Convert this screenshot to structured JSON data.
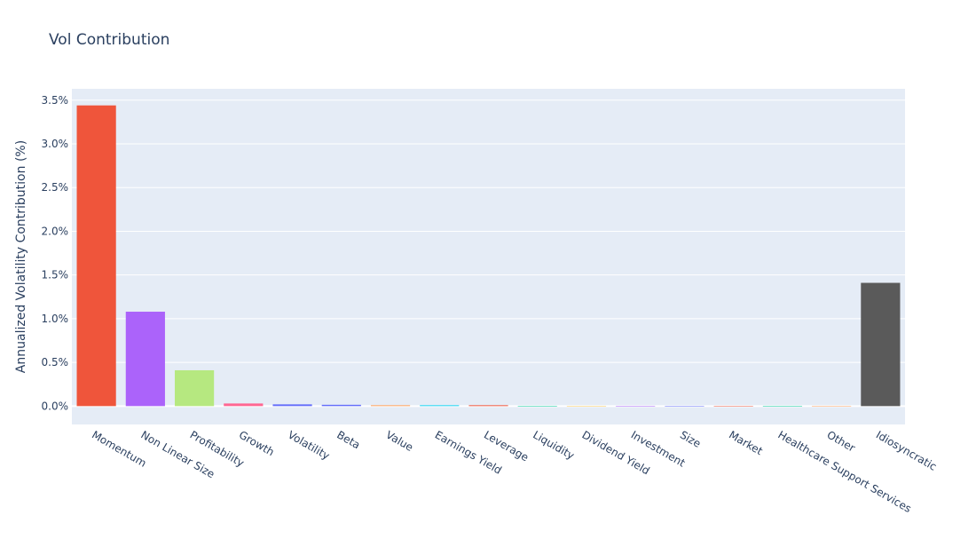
{
  "chart_data": {
    "type": "bar",
    "title": "Vol Contribution",
    "y_label": "Annualized Volatility Contribution (%)",
    "categories": [
      "Momentum",
      "Non Linear Size",
      "Profitability",
      "Growth",
      "Volatility",
      "Beta",
      "Value",
      "Earnings Yield",
      "Leverage",
      "Liquidity",
      "Dividend Yield",
      "Investment",
      "Size",
      "Market",
      "Healthcare Support Services",
      "Other",
      "Idiosyncratic"
    ],
    "values": [
      3.44,
      1.08,
      0.41,
      0.03,
      0.02,
      0.015,
      0.01,
      0.01,
      0.01,
      -0.005,
      0.003,
      0,
      0,
      0,
      0,
      0,
      1.41
    ],
    "colors": [
      "#EF553B",
      "#AB63FA",
      "#B6E880",
      "#FF6692",
      "#636EFA",
      "#636EFA",
      "#FFA15A",
      "#19D3F3",
      "#EF553B",
      "#00CC96",
      "#FECB52",
      "#AB63FA",
      "#636EFA",
      "#EF553B",
      "#00CC96",
      "#FFA15A",
      "#5A5A5A"
    ],
    "ylim": [
      -0.21,
      3.63
    ],
    "yticks": [
      {
        "value": 0,
        "label": "0.0%"
      },
      {
        "value": 0.5,
        "label": "0.5%"
      },
      {
        "value": 1,
        "label": "1.0%"
      },
      {
        "value": 1.5,
        "label": "1.5%"
      },
      {
        "value": 2,
        "label": "2.0%"
      },
      {
        "value": 2.5,
        "label": "2.5%"
      },
      {
        "value": 3,
        "label": "3.0%"
      },
      {
        "value": 3.5,
        "label": "3.5%"
      }
    ],
    "grid": true
  }
}
